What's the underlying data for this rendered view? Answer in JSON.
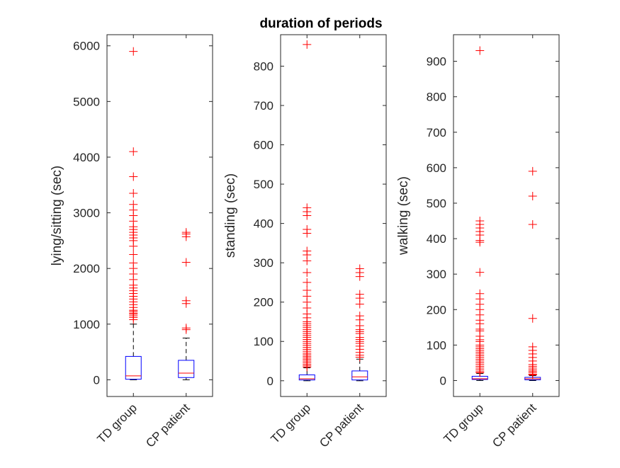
{
  "title": "duration of periods",
  "colors": {
    "box": "#0000ff",
    "median": "#ff0000",
    "outlier": "#ff0000",
    "whisker": "#000000",
    "axis": "#262626"
  },
  "chart_data": [
    {
      "type": "box",
      "title": "duration of periods",
      "ylabel": "lying/sitting (sec)",
      "ylim": [
        -300,
        6200
      ],
      "yticks": [
        0,
        1000,
        2000,
        3000,
        4000,
        5000,
        6000
      ],
      "categories": [
        "TD group",
        "CP patient"
      ],
      "boxes": [
        {
          "q1": 10,
          "median": 70,
          "q3": 420,
          "whisker_low": 0,
          "whisker_high": 1000,
          "outliers": [
            1080,
            1120,
            1150,
            1180,
            1200,
            1230,
            1250,
            1300,
            1350,
            1400,
            1450,
            1500,
            1550,
            1600,
            1650,
            1700,
            1800,
            1900,
            2000,
            2100,
            2250,
            2400,
            2500,
            2550,
            2600,
            2650,
            2700,
            2750,
            2850,
            2950,
            3050,
            3150,
            3350,
            3650,
            4100,
            5900
          ]
        },
        {
          "q1": 40,
          "median": 120,
          "q3": 350,
          "whisker_low": 0,
          "whisker_high": 750,
          "outliers": [
            900,
            930,
            1370,
            1420,
            2110,
            2570,
            2620,
            2650
          ]
        }
      ]
    },
    {
      "type": "box",
      "ylabel": "standing (sec)",
      "ylim": [
        -40,
        880
      ],
      "yticks": [
        0,
        100,
        200,
        300,
        400,
        500,
        600,
        700,
        800
      ],
      "categories": [
        "TD group",
        "CP patient"
      ],
      "boxes": [
        {
          "q1": 2,
          "median": 5,
          "q3": 15,
          "whisker_low": 0,
          "whisker_high": 33,
          "outliers": [
            35,
            38,
            42,
            46,
            50,
            54,
            58,
            62,
            66,
            70,
            75,
            80,
            85,
            90,
            95,
            100,
            105,
            110,
            115,
            120,
            125,
            130,
            135,
            140,
            145,
            150,
            160,
            170,
            185,
            200,
            215,
            230,
            250,
            275,
            305,
            320,
            330,
            375,
            385,
            420,
            430,
            440,
            855
          ]
        },
        {
          "q1": 2,
          "median": 10,
          "q3": 25,
          "whisker_low": 0,
          "whisker_high": 55,
          "outliers": [
            60,
            65,
            72,
            80,
            88,
            95,
            100,
            105,
            110,
            120,
            125,
            130,
            140,
            155,
            165,
            195,
            210,
            220,
            265,
            275,
            285
          ]
        }
      ]
    },
    {
      "type": "box",
      "ylabel": "walking (sec)",
      "ylim": [
        -45,
        975
      ],
      "yticks": [
        0,
        100,
        200,
        300,
        400,
        500,
        600,
        700,
        800,
        900
      ],
      "categories": [
        "TD group",
        "CP patient"
      ],
      "boxes": [
        {
          "q1": 3,
          "median": 5,
          "q3": 12,
          "whisker_low": 0,
          "whisker_high": 20,
          "outliers": [
            22,
            25,
            30,
            35,
            40,
            45,
            50,
            55,
            60,
            65,
            70,
            75,
            80,
            85,
            90,
            95,
            100,
            110,
            115,
            125,
            140,
            145,
            160,
            170,
            185,
            200,
            215,
            230,
            245,
            305,
            390,
            395,
            410,
            420,
            430,
            440,
            450,
            930
          ]
        },
        {
          "q1": 2,
          "median": 5,
          "q3": 9,
          "whisker_low": 0,
          "whisker_high": 14,
          "outliers": [
            16,
            18,
            22,
            26,
            30,
            35,
            40,
            45,
            55,
            65,
            75,
            85,
            95,
            175,
            440,
            520,
            590
          ]
        }
      ]
    }
  ]
}
